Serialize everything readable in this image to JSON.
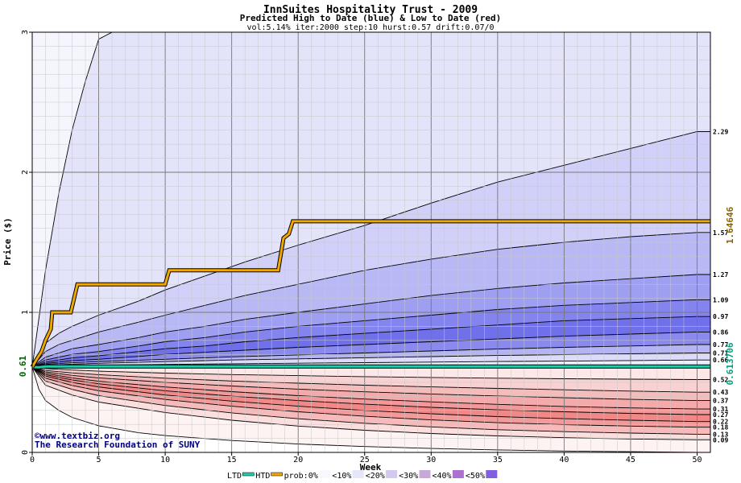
{
  "chart_data": {
    "type": "area",
    "title": "InnSuites Hospitality Trust - 2009",
    "subtitle": "Predicted High to Date (blue) &  Low to Date (red)",
    "params": "vol:5.14% iter:2000 step:10 hurst:0.57 drift:0.07/0",
    "xlabel": "Week",
    "ylabel": "Price ($)",
    "xlim": [
      0,
      51
    ],
    "ylim": [
      0,
      3
    ],
    "x_ticks": [
      0,
      5,
      10,
      15,
      20,
      25,
      30,
      35,
      40,
      45,
      50
    ],
    "y_ticks": [
      0,
      1,
      2,
      3
    ],
    "grid": true,
    "start_price_label": "0.61",
    "start_price": 0.61,
    "htd_label": "1.64646",
    "htd_value": 1.64646,
    "ltd_label": "0.613706",
    "ltd_value": 0.613706,
    "right_labels": [
      "2.29",
      "1.57",
      "1.27",
      "1.09",
      "0.97",
      "0.86",
      "0.77",
      "0.71",
      "0.66",
      "0.52",
      "0.43",
      "0.37",
      "0.31",
      "0.27",
      "0.22",
      "0.18",
      "0.13",
      "0.09"
    ],
    "upper_curves": [
      {
        "label": "",
        "end": 3.0,
        "x": [
          0,
          1,
          2,
          3,
          4,
          5,
          6,
          7
        ],
        "y": [
          0.61,
          1.3,
          1.85,
          2.3,
          2.65,
          2.95,
          3.0,
          3.0
        ]
      },
      {
        "label": "2.29",
        "end": 2.29,
        "x": [
          0,
          1,
          2,
          3,
          5,
          8,
          10,
          13,
          16,
          20,
          25,
          30,
          35,
          40,
          45,
          50,
          51
        ],
        "y": [
          0.61,
          0.78,
          0.85,
          0.9,
          0.98,
          1.08,
          1.16,
          1.26,
          1.36,
          1.48,
          1.62,
          1.78,
          1.93,
          2.05,
          2.17,
          2.29,
          2.29
        ]
      },
      {
        "label": "1.57",
        "end": 1.57,
        "x": [
          0,
          1,
          2,
          3,
          5,
          8,
          10,
          13,
          16,
          20,
          25,
          30,
          35,
          40,
          45,
          50,
          51
        ],
        "y": [
          0.61,
          0.72,
          0.77,
          0.8,
          0.86,
          0.93,
          0.98,
          1.05,
          1.12,
          1.2,
          1.3,
          1.38,
          1.45,
          1.5,
          1.54,
          1.57,
          1.57
        ]
      },
      {
        "label": "1.27",
        "end": 1.27,
        "x": [
          0,
          1,
          2,
          3,
          5,
          8,
          10,
          13,
          16,
          20,
          25,
          30,
          35,
          40,
          45,
          50,
          51
        ],
        "y": [
          0.61,
          0.68,
          0.71,
          0.74,
          0.77,
          0.82,
          0.86,
          0.9,
          0.95,
          1.0,
          1.06,
          1.12,
          1.17,
          1.21,
          1.24,
          1.27,
          1.27
        ]
      },
      {
        "label": "1.09",
        "end": 1.09,
        "x": [
          0,
          1,
          2,
          3,
          5,
          8,
          10,
          13,
          16,
          20,
          25,
          30,
          35,
          40,
          45,
          50,
          51
        ],
        "y": [
          0.61,
          0.66,
          0.68,
          0.7,
          0.72,
          0.76,
          0.79,
          0.82,
          0.86,
          0.9,
          0.94,
          0.98,
          1.02,
          1.05,
          1.07,
          1.09,
          1.09
        ]
      },
      {
        "label": "0.97",
        "end": 0.97,
        "x": [
          0,
          1,
          2,
          3,
          5,
          8,
          10,
          13,
          16,
          20,
          25,
          30,
          35,
          40,
          45,
          50,
          51
        ],
        "y": [
          0.61,
          0.645,
          0.66,
          0.675,
          0.69,
          0.72,
          0.74,
          0.76,
          0.79,
          0.82,
          0.85,
          0.88,
          0.91,
          0.94,
          0.955,
          0.97,
          0.97
        ]
      },
      {
        "label": "0.86",
        "end": 0.86,
        "x": [
          0,
          1,
          2,
          3,
          5,
          8,
          10,
          13,
          16,
          20,
          25,
          30,
          35,
          40,
          45,
          50,
          51
        ],
        "y": [
          0.61,
          0.635,
          0.645,
          0.655,
          0.665,
          0.685,
          0.7,
          0.715,
          0.73,
          0.75,
          0.77,
          0.79,
          0.81,
          0.83,
          0.845,
          0.86,
          0.86
        ]
      },
      {
        "label": "0.77",
        "end": 0.77,
        "x": [
          0,
          1,
          3,
          5,
          10,
          15,
          20,
          25,
          30,
          35,
          40,
          45,
          50,
          51
        ],
        "y": [
          0.61,
          0.628,
          0.64,
          0.648,
          0.665,
          0.682,
          0.696,
          0.71,
          0.724,
          0.738,
          0.75,
          0.76,
          0.77,
          0.77
        ]
      },
      {
        "label": "0.71",
        "end": 0.71,
        "x": [
          0,
          1,
          3,
          5,
          10,
          15,
          20,
          25,
          30,
          35,
          40,
          45,
          50,
          51
        ],
        "y": [
          0.61,
          0.622,
          0.63,
          0.636,
          0.648,
          0.66,
          0.668,
          0.676,
          0.684,
          0.692,
          0.698,
          0.704,
          0.71,
          0.71
        ]
      },
      {
        "label": "0.66",
        "end": 0.66,
        "x": [
          0,
          1,
          3,
          5,
          10,
          15,
          20,
          25,
          30,
          35,
          40,
          45,
          50,
          51
        ],
        "y": [
          0.61,
          0.616,
          0.62,
          0.623,
          0.628,
          0.633,
          0.637,
          0.641,
          0.645,
          0.649,
          0.652,
          0.656,
          0.66,
          0.66
        ]
      }
    ],
    "lower_curves": [
      {
        "label": "0.52",
        "end": 0.52,
        "x": [
          0,
          1,
          3,
          5,
          10,
          15,
          20,
          25,
          30,
          35,
          40,
          45,
          50,
          51
        ],
        "y": [
          0.61,
          0.598,
          0.588,
          0.58,
          0.566,
          0.556,
          0.548,
          0.541,
          0.535,
          0.53,
          0.526,
          0.523,
          0.52,
          0.52
        ]
      },
      {
        "label": "0.43",
        "end": 0.43,
        "x": [
          0,
          1,
          3,
          5,
          10,
          15,
          20,
          25,
          30,
          35,
          40,
          45,
          50,
          51
        ],
        "y": [
          0.61,
          0.585,
          0.568,
          0.555,
          0.53,
          0.51,
          0.494,
          0.48,
          0.468,
          0.457,
          0.447,
          0.438,
          0.43,
          0.43
        ]
      },
      {
        "label": "0.37",
        "end": 0.37,
        "x": [
          0,
          1,
          3,
          5,
          10,
          15,
          20,
          25,
          30,
          35,
          40,
          45,
          50,
          51
        ],
        "y": [
          0.61,
          0.575,
          0.55,
          0.532,
          0.5,
          0.474,
          0.452,
          0.433,
          0.417,
          0.403,
          0.39,
          0.379,
          0.37,
          0.37
        ]
      },
      {
        "label": "0.31",
        "end": 0.31,
        "x": [
          0,
          1,
          3,
          5,
          10,
          15,
          20,
          25,
          30,
          35,
          40,
          45,
          50,
          51
        ],
        "y": [
          0.61,
          0.565,
          0.532,
          0.508,
          0.467,
          0.434,
          0.405,
          0.381,
          0.361,
          0.343,
          0.328,
          0.318,
          0.31,
          0.31
        ]
      },
      {
        "label": "0.27",
        "end": 0.27,
        "x": [
          0,
          1,
          3,
          5,
          10,
          15,
          20,
          25,
          30,
          35,
          40,
          45,
          50,
          51
        ],
        "y": [
          0.61,
          0.555,
          0.518,
          0.49,
          0.44,
          0.402,
          0.37,
          0.344,
          0.322,
          0.304,
          0.29,
          0.279,
          0.27,
          0.27
        ]
      },
      {
        "label": "0.22",
        "end": 0.22,
        "x": [
          0,
          1,
          3,
          5,
          10,
          15,
          20,
          25,
          30,
          35,
          40,
          45,
          50,
          51
        ],
        "y": [
          0.61,
          0.545,
          0.5,
          0.467,
          0.41,
          0.366,
          0.33,
          0.3,
          0.276,
          0.256,
          0.241,
          0.23,
          0.22,
          0.22
        ]
      },
      {
        "label": "0.18",
        "end": 0.18,
        "x": [
          0,
          1,
          3,
          5,
          10,
          15,
          20,
          25,
          30,
          35,
          40,
          45,
          50,
          51
        ],
        "y": [
          0.61,
          0.53,
          0.478,
          0.44,
          0.378,
          0.33,
          0.29,
          0.258,
          0.232,
          0.212,
          0.198,
          0.188,
          0.18,
          0.18
        ]
      },
      {
        "label": "0.13",
        "end": 0.13,
        "x": [
          0,
          1,
          3,
          5,
          10,
          15,
          20,
          25,
          30,
          35,
          40,
          45,
          50,
          51
        ],
        "y": [
          0.61,
          0.51,
          0.45,
          0.405,
          0.335,
          0.282,
          0.24,
          0.208,
          0.182,
          0.162,
          0.148,
          0.138,
          0.13,
          0.13
        ]
      },
      {
        "label": "0.09",
        "end": 0.09,
        "x": [
          0,
          1,
          3,
          5,
          10,
          15,
          20,
          25,
          30,
          35,
          40,
          45,
          50,
          51
        ],
        "y": [
          0.61,
          0.48,
          0.41,
          0.36,
          0.285,
          0.23,
          0.188,
          0.158,
          0.135,
          0.118,
          0.105,
          0.096,
          0.09,
          0.09
        ]
      },
      {
        "label": "",
        "end": 0.0,
        "x": [
          0,
          0.5,
          1,
          2,
          3,
          5,
          8,
          10,
          15,
          20,
          25,
          30,
          35,
          40,
          45,
          50,
          51
        ],
        "y": [
          0.61,
          0.45,
          0.37,
          0.3,
          0.25,
          0.19,
          0.14,
          0.12,
          0.085,
          0.06,
          0.042,
          0.028,
          0.018,
          0.01,
          0.005,
          0.0,
          0.0
        ]
      }
    ],
    "htd_path": {
      "x": [
        0,
        0.3,
        0.7,
        1,
        1.4,
        1.5,
        2.9,
        3.1,
        3.4,
        10.0,
        10.3,
        18.5,
        18.9,
        19.3,
        19.6,
        51
      ],
      "y": [
        0.61,
        0.66,
        0.72,
        0.8,
        0.88,
        1.0,
        1.0,
        1.08,
        1.2,
        1.2,
        1.3,
        1.3,
        1.53,
        1.56,
        1.65,
        1.65
      ]
    },
    "ltd_path": {
      "x": [
        0,
        0.5,
        1,
        51
      ],
      "y": [
        0.61,
        0.608,
        0.6137,
        0.6137
      ]
    },
    "legend": [
      "LTD",
      "HTD",
      "prob:0%",
      "<10%",
      "<20%",
      "<30%",
      "<40%",
      "<50%"
    ],
    "watermark": [
      "©www.textbiz.org",
      "The Research Foundation of SUNY"
    ],
    "colors": {
      "upper": [
        "#f5f5fd",
        "#e3e3fa",
        "#d0d0f8",
        "#b8b8f5",
        "#9f9ff2",
        "#8484ee",
        "#7070ea",
        "#8a8aee",
        "#b4b4f4",
        "#dcdcfa"
      ],
      "lower": [
        "#fce8e8",
        "#f8d2d2",
        "#f5bcbc",
        "#f4aaaa",
        "#f29898",
        "#f08888",
        "#f29a9a",
        "#f6baba",
        "#fbdfdf",
        "#fdf3f3"
      ],
      "htd": "#f0a800",
      "ltd": "#22ccaa",
      "htd_label": "#8b6400",
      "ltd_label": "#00a080",
      "grid": "#888888",
      "watermark": "#000080"
    }
  }
}
